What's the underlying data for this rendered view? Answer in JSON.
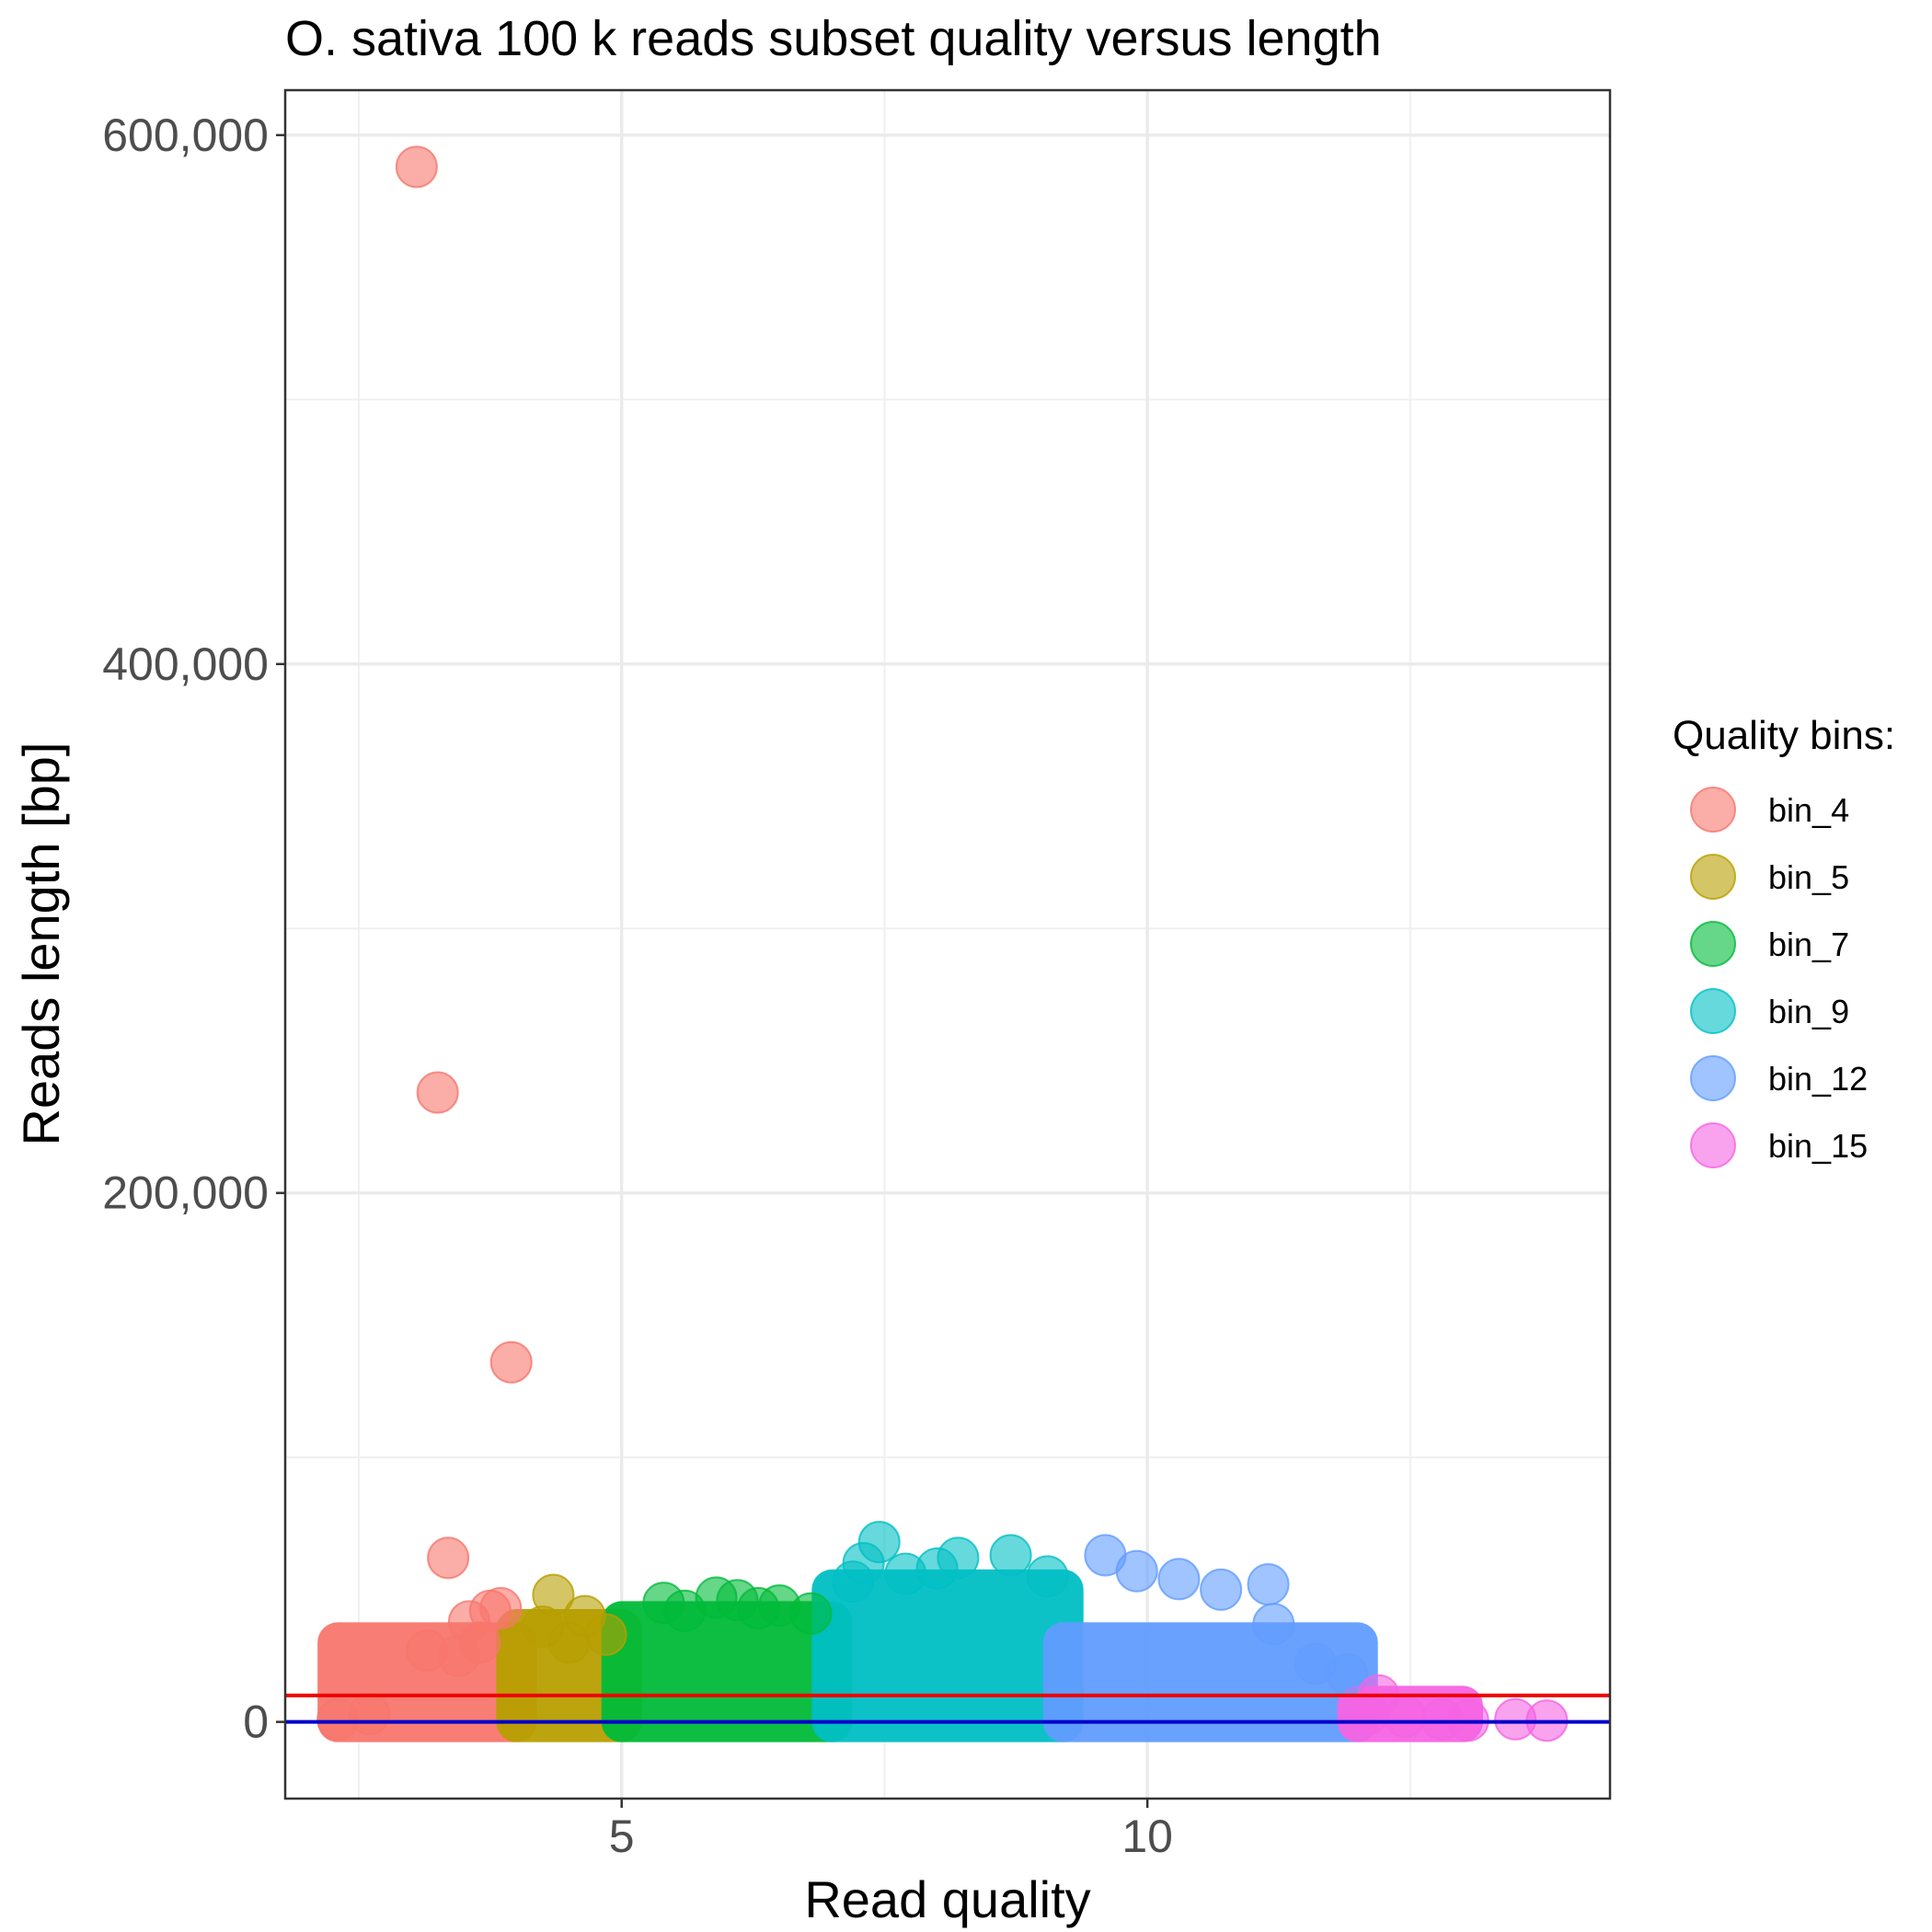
{
  "chart_data": {
    "type": "scatter",
    "title": "O. sativa 100 k reads subset quality versus length",
    "xlabel": "Read quality",
    "ylabel": "Reads length [bp]",
    "xlim": [
      1.8,
      14.4
    ],
    "ylim": [
      -29000,
      617000
    ],
    "x_ticks": [
      5,
      10
    ],
    "x_tick_labels": [
      "5",
      "10"
    ],
    "y_ticks": [
      0,
      200000,
      400000,
      600000
    ],
    "y_tick_labels": [
      "0",
      "200,000",
      "400,000",
      "600,000"
    ],
    "grid": true,
    "legend": {
      "title": "Quality bins:",
      "placement": "right"
    },
    "reference_lines": [
      {
        "axis": "y",
        "value": 10000,
        "color": "#ee0000"
      },
      {
        "axis": "y",
        "value": 0,
        "color": "#0000cc"
      }
    ],
    "series": [
      {
        "name": "bin_4",
        "color": "#F8766D",
        "x": [
          3.05,
          3.25,
          3.95,
          3.35,
          3.85,
          3.75,
          3.55,
          3.15,
          2.6,
          2.3,
          3.45,
          3.65
        ],
        "y": [
          588000,
          238000,
          136000,
          62000,
          43000,
          42000,
          38000,
          27000,
          3000,
          1000,
          25000,
          30000
        ]
      },
      {
        "name": "bin_5",
        "color": "#B79F00",
        "x": [
          4.35,
          4.65,
          4.25,
          4.85,
          4.5
        ],
        "y": [
          48000,
          40000,
          36000,
          33000,
          30000
        ]
      },
      {
        "name": "bin_7",
        "color": "#00BA38",
        "x": [
          5.4,
          5.9,
          6.1,
          6.5,
          6.8,
          5.6,
          6.3
        ],
        "y": [
          45000,
          47000,
          46000,
          44000,
          41000,
          42000,
          43000
        ]
      },
      {
        "name": "bin_9",
        "color": "#00BFC4",
        "x": [
          7.45,
          7.3,
          7.2,
          7.7,
          8.2,
          8.7,
          9.05,
          8.0
        ],
        "y": [
          68000,
          60000,
          53000,
          56000,
          62000,
          63000,
          55000,
          58000
        ]
      },
      {
        "name": "bin_12",
        "color": "#619CFF",
        "x": [
          9.6,
          9.9,
          10.3,
          10.7,
          11.15,
          11.2,
          11.6,
          11.9
        ],
        "y": [
          63000,
          57000,
          54000,
          50000,
          52000,
          37000,
          22000,
          18000
        ]
      },
      {
        "name": "bin_15",
        "color": "#F564E3",
        "x": [
          12.2,
          12.1,
          12.45,
          12.8,
          13.05,
          13.5,
          13.8
        ],
        "y": [
          10000,
          3000,
          2000,
          1000,
          500,
          1000,
          500
        ]
      }
    ],
    "bulk_ranges": [
      {
        "series": "bin_4",
        "x": [
          2.3,
          4.0
        ],
        "y": [
          0,
          30000
        ]
      },
      {
        "series": "bin_5",
        "x": [
          4.0,
          5.0
        ],
        "y": [
          0,
          35000
        ]
      },
      {
        "series": "bin_7",
        "x": [
          5.0,
          7.0
        ],
        "y": [
          0,
          38000
        ]
      },
      {
        "series": "bin_9",
        "x": [
          7.0,
          9.2
        ],
        "y": [
          0,
          50000
        ]
      },
      {
        "series": "bin_12",
        "x": [
          9.2,
          12.0
        ],
        "y": [
          0,
          30000
        ]
      },
      {
        "series": "bin_15",
        "x": [
          12.0,
          13.0
        ],
        "y": [
          0,
          6000
        ]
      }
    ]
  }
}
